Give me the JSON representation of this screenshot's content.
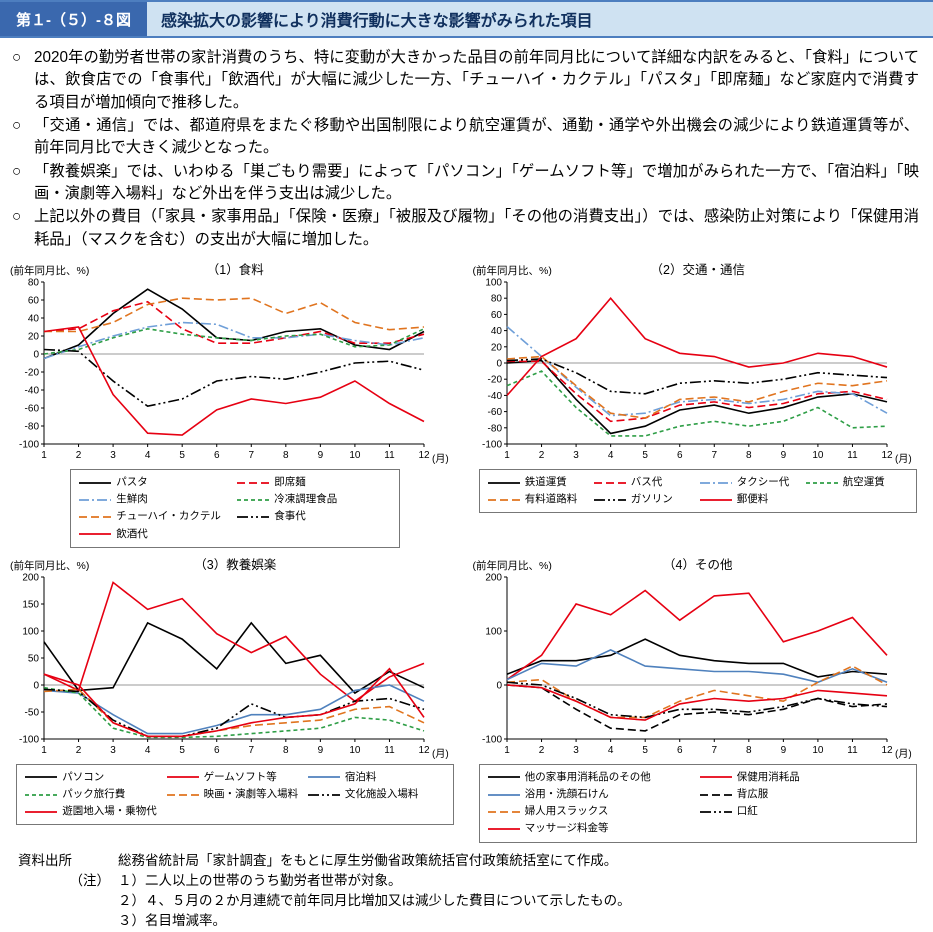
{
  "header": {
    "badge": "第１-（５）-８図",
    "title": "感染拡大の影響により消費行動に大きな影響がみられた項目"
  },
  "bullets": [
    {
      "marker": "○",
      "text": "2020年の勤労者世帯の家計消費のうち、特に変動が大きかった品目の前年同月比について詳細な内訳をみると、「食料」については、飲食店での「食事代」「飲酒代」が大幅に減少した一方、「チューハイ・カクテル」「パスタ」「即席麺」など家庭内で消費する項目が増加傾向で推移した。"
    },
    {
      "marker": "○",
      "text": "「交通・通信」では、都道府県をまたぐ移動や出国制限により航空運賃が、通勤・通学や外出機会の減少により鉄道運賃等が、前年同月比で大きく減少となった。"
    },
    {
      "marker": "○",
      "text": "「教養娯楽」では、いわゆる「巣ごもり需要」によって「パソコン」「ゲームソフト等」で増加がみられた一方で、「宿泊料」「映画・演劇等入場料」など外出を伴う支出は減少した。"
    },
    {
      "marker": "○",
      "text": "上記以外の費目（「家具・家事用品」「保険・医療」「被服及び履物」「その他の消費支出」）では、感染防止対策により「保健用消耗品」（マスクを含む）の支出が大幅に増加した。"
    }
  ],
  "chart_data": [
    {
      "type": "line",
      "title": "（1）食料",
      "ylabel": "(前年同月比、%)",
      "xlabel": "(月)",
      "x": [
        1,
        2,
        3,
        4,
        5,
        6,
        7,
        8,
        9,
        10,
        11,
        12
      ],
      "ylim": [
        -100,
        80
      ],
      "yticks": [
        80,
        60,
        40,
        20,
        0,
        -20,
        -40,
        -60,
        -80,
        -100
      ],
      "legend_cols": 2,
      "series": [
        {
          "name": "パスタ",
          "color": "#000000",
          "dash": "solid",
          "values": [
            -5,
            10,
            45,
            72,
            50,
            18,
            15,
            25,
            28,
            10,
            5,
            25
          ]
        },
        {
          "name": "即席麺",
          "color": "#e60012",
          "dash": "dash",
          "values": [
            25,
            28,
            48,
            58,
            28,
            12,
            12,
            18,
            25,
            12,
            12,
            22
          ]
        },
        {
          "name": "生鮮肉",
          "color": "#6f9fd8",
          "dash": "dashdot",
          "values": [
            -5,
            8,
            20,
            30,
            35,
            33,
            18,
            18,
            22,
            15,
            10,
            18
          ]
        },
        {
          "name": "冷凍調理食品",
          "color": "#2e9e46",
          "dash": "shortdash",
          "values": [
            0,
            5,
            18,
            28,
            22,
            18,
            15,
            20,
            22,
            8,
            10,
            28
          ]
        },
        {
          "name": "チューハイ・カクテル",
          "color": "#e0741f",
          "dash": "dash",
          "values": [
            25,
            25,
            35,
            55,
            62,
            60,
            62,
            45,
            57,
            35,
            27,
            30
          ]
        },
        {
          "name": "食事代",
          "color": "#000000",
          "dash": "dashdotdot",
          "values": [
            5,
            3,
            -30,
            -58,
            -50,
            -30,
            -25,
            -28,
            -20,
            -10,
            -8,
            -18
          ]
        },
        {
          "name": "飲酒代",
          "color": "#e60012",
          "dash": "solid",
          "values": [
            25,
            30,
            -45,
            -88,
            -90,
            -62,
            -50,
            -55,
            -48,
            -30,
            -55,
            -75
          ]
        }
      ]
    },
    {
      "type": "line",
      "title": "（2）交通・通信",
      "ylabel": "(前年同月比、%)",
      "xlabel": "(月)",
      "x": [
        1,
        2,
        3,
        4,
        5,
        6,
        7,
        8,
        9,
        10,
        11,
        12
      ],
      "ylim": [
        -100,
        100
      ],
      "yticks": [
        100,
        80,
        60,
        40,
        20,
        0,
        -20,
        -40,
        -60,
        -80,
        -100
      ],
      "legend_cols": 4,
      "series": [
        {
          "name": "鉄道運賃",
          "color": "#000000",
          "dash": "solid",
          "values": [
            0,
            3,
            -45,
            -87,
            -78,
            -58,
            -52,
            -62,
            -55,
            -42,
            -38,
            -48
          ]
        },
        {
          "name": "バス代",
          "color": "#e60012",
          "dash": "dash",
          "values": [
            2,
            2,
            -38,
            -72,
            -68,
            -52,
            -48,
            -55,
            -50,
            -38,
            -35,
            -45
          ]
        },
        {
          "name": "タクシー代",
          "color": "#6f9fd8",
          "dash": "dashdot",
          "values": [
            45,
            8,
            -30,
            -65,
            -62,
            -48,
            -45,
            -50,
            -45,
            -35,
            -38,
            -62
          ]
        },
        {
          "name": "航空運賃",
          "color": "#2e9e46",
          "dash": "shortdash",
          "values": [
            -28,
            -10,
            -55,
            -90,
            -90,
            -78,
            -72,
            -78,
            -72,
            -55,
            -80,
            -78
          ]
        },
        {
          "name": "有料道路料",
          "color": "#e0741f",
          "dash": "dash",
          "values": [
            5,
            8,
            -28,
            -62,
            -68,
            -45,
            -42,
            -48,
            -35,
            -25,
            -28,
            -22
          ]
        },
        {
          "name": "ガソリン",
          "color": "#000000",
          "dash": "dashdotdot",
          "values": [
            3,
            5,
            -12,
            -35,
            -38,
            -25,
            -22,
            -25,
            -20,
            -12,
            -15,
            -18
          ]
        },
        {
          "name": "郵便料",
          "color": "#e60012",
          "dash": "solid",
          "values": [
            -40,
            8,
            30,
            80,
            30,
            12,
            8,
            -5,
            0,
            12,
            8,
            -5
          ]
        }
      ]
    },
    {
      "type": "line",
      "title": "（3）教養娯楽",
      "ylabel": "(前年同月比、%)",
      "xlabel": "(月)",
      "x": [
        1,
        2,
        3,
        4,
        5,
        6,
        7,
        8,
        9,
        10,
        11,
        12
      ],
      "ylim": [
        -100,
        200
      ],
      "yticks": [
        200,
        150,
        100,
        50,
        0,
        -50,
        -100
      ],
      "legend_cols": 3,
      "series": [
        {
          "name": "パソコン",
          "color": "#000000",
          "dash": "solid",
          "values": [
            80,
            -10,
            -5,
            115,
            85,
            30,
            115,
            40,
            55,
            -15,
            25,
            -5
          ]
        },
        {
          "name": "ゲームソフト等",
          "color": "#e60012",
          "dash": "solid",
          "values": [
            20,
            -10,
            190,
            140,
            160,
            95,
            60,
            90,
            20,
            -30,
            15,
            40
          ]
        },
        {
          "name": "宿泊料",
          "color": "#4f81bd",
          "dash": "solid",
          "values": [
            -10,
            -15,
            -55,
            -90,
            -90,
            -75,
            -55,
            -55,
            -45,
            -10,
            0,
            -30
          ]
        },
        {
          "name": "パック旅行費",
          "color": "#2e9e46",
          "dash": "shortdash",
          "values": [
            -5,
            -15,
            -80,
            -97,
            -97,
            -95,
            -90,
            -85,
            -80,
            -60,
            -65,
            -85
          ]
        },
        {
          "name": "映画・演劇等入場料",
          "color": "#e0741f",
          "dash": "dash",
          "values": [
            -12,
            -8,
            -70,
            -95,
            -95,
            -85,
            -75,
            -70,
            -65,
            -45,
            -40,
            -70
          ]
        },
        {
          "name": "文化施設入場料",
          "color": "#000000",
          "dash": "dashdotdot",
          "values": [
            -8,
            -12,
            -65,
            -95,
            -95,
            -80,
            -35,
            -60,
            -55,
            -30,
            -25,
            -45
          ]
        },
        {
          "name": "遊園地入場・乗物代",
          "color": "#e60012",
          "dash": "solid",
          "values": [
            20,
            0,
            -70,
            -95,
            -95,
            -85,
            -70,
            -60,
            -55,
            -35,
            30,
            -60
          ]
        }
      ]
    },
    {
      "type": "line",
      "title": "（4）その他",
      "ylabel": "(前年同月比、%)",
      "xlabel": "(月)",
      "x": [
        1,
        2,
        3,
        4,
        5,
        6,
        7,
        8,
        9,
        10,
        11,
        12
      ],
      "ylim": [
        -100,
        200
      ],
      "yticks": [
        200,
        100,
        0,
        -100
      ],
      "legend_cols": 2,
      "series": [
        {
          "name": "他の家事用消耗品のその他",
          "color": "#000000",
          "dash": "solid",
          "values": [
            20,
            45,
            45,
            55,
            85,
            55,
            45,
            40,
            40,
            15,
            25,
            20
          ]
        },
        {
          "name": "保健用消耗品",
          "color": "#e60012",
          "dash": "solid",
          "values": [
            10,
            55,
            150,
            130,
            175,
            120,
            165,
            170,
            80,
            100,
            125,
            55
          ]
        },
        {
          "name": "浴用・洗顔石けん",
          "color": "#4f81bd",
          "dash": "solid",
          "values": [
            10,
            40,
            35,
            65,
            35,
            30,
            25,
            25,
            20,
            5,
            30,
            5
          ]
        },
        {
          "name": "背広服",
          "color": "#000000",
          "dash": "dash",
          "values": [
            0,
            -5,
            -45,
            -80,
            -85,
            -55,
            -50,
            -55,
            -45,
            -25,
            -40,
            -35
          ]
        },
        {
          "name": "婦人用スラックス",
          "color": "#e0741f",
          "dash": "dash",
          "values": [
            5,
            10,
            -30,
            -60,
            -60,
            -30,
            -10,
            -20,
            -30,
            5,
            35,
            0
          ]
        },
        {
          "name": "口紅",
          "color": "#000000",
          "dash": "dashdotdot",
          "values": [
            5,
            0,
            -25,
            -55,
            -60,
            -45,
            -45,
            -50,
            -40,
            -25,
            -35,
            -40
          ]
        },
        {
          "name": "マッサージ料金等",
          "color": "#e60012",
          "dash": "solid",
          "values": [
            0,
            -5,
            -30,
            -60,
            -65,
            -35,
            -25,
            -30,
            -25,
            -10,
            -15,
            -20
          ]
        }
      ]
    }
  ],
  "footer": {
    "source_label": "資料出所",
    "source_text": "総務省統計局「家計調査」をもとに厚生労働省政策統括官付政策統括室にて作成。",
    "note_label": "（注）",
    "notes": [
      "１）二人以上の世帯のうち勤労者世帯が対象。",
      "２）４、５月の２か月連続で前年同月比増加又は減少した費目について示したもの。",
      "３）名目増減率。"
    ]
  },
  "colors": {
    "header_badge_bg": "#3a68ae",
    "header_title_bg": "#cfe2f2",
    "header_border": "#4d7ebf",
    "zero_line": "#999999"
  }
}
